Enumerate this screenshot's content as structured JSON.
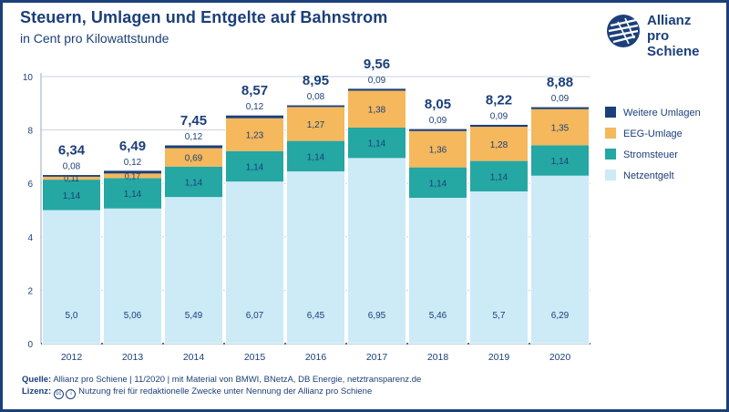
{
  "header": {
    "title": "Steuern, Umlagen und Entgelte auf Bahnstrom",
    "subtitle": "in Cent pro Kilowattstunde"
  },
  "logo": {
    "line1": "Allianz",
    "line2": "pro Schiene"
  },
  "footer": {
    "source_label": "Quelle:",
    "source_text": "Allianz pro Schiene | 11/2020 | mit Material von BMWI, BNetzA, DB Energie, netztransparenz.de",
    "license_label": "Lizenz:",
    "license_text": "Nutzung frei für redaktionelle Zwecke unter Nennung der Allianz pro Schiene"
  },
  "colors": {
    "brand": "#1b3f7a",
    "netzentgelt": "#cdeaf7",
    "stromsteuer": "#25a7a3",
    "eeg": "#f5b85c",
    "weitere": "#1b3f7a"
  },
  "chart_data": {
    "type": "bar",
    "stacked": true,
    "categories": [
      "2012",
      "2013",
      "2014",
      "2015",
      "2016",
      "2017",
      "2018",
      "2019",
      "2020"
    ],
    "series": [
      {
        "name": "Netzentgelt",
        "values": [
          5.0,
          5.06,
          5.49,
          6.07,
          6.45,
          6.95,
          5.46,
          5.7,
          6.29
        ],
        "labels": [
          "5,0",
          "5,06",
          "5,49",
          "6,07",
          "6,45",
          "6,95",
          "5,46",
          "5,7",
          "6,29"
        ],
        "color": "#cdeaf7"
      },
      {
        "name": "Stromsteuer",
        "values": [
          1.14,
          1.14,
          1.14,
          1.14,
          1.14,
          1.14,
          1.14,
          1.14,
          1.14
        ],
        "labels": [
          "1,14",
          "1,14",
          "1,14",
          "1,14",
          "1,14",
          "1,14",
          "1,14",
          "1,14",
          "1,14"
        ],
        "color": "#25a7a3"
      },
      {
        "name": "EEG-Umlage",
        "values": [
          0.11,
          0.17,
          0.69,
          1.23,
          1.27,
          1.38,
          1.36,
          1.28,
          1.35
        ],
        "labels": [
          "0,11",
          "0,17",
          "0,69",
          "1,23",
          "1,27",
          "1,38",
          "1,36",
          "1,28",
          "1,35"
        ],
        "color": "#f5b85c"
      },
      {
        "name": "Weitere Umlagen",
        "values": [
          0.08,
          0.12,
          0.12,
          0.12,
          0.08,
          0.09,
          0.09,
          0.09,
          0.09
        ],
        "labels": [
          "0,08",
          "0,12",
          "0,12",
          "0,12",
          "0,08",
          "0,09",
          "0,09",
          "0,09",
          "0,09"
        ],
        "color": "#1b3f7a"
      }
    ],
    "totals": [
      6.34,
      6.49,
      7.45,
      8.57,
      8.95,
      9.56,
      8.05,
      8.22,
      8.88
    ],
    "total_labels": [
      "6,34",
      "6,49",
      "7,45",
      "8,57",
      "8,95",
      "9,56",
      "8,05",
      "8,22",
      "8,88"
    ],
    "y_ticks": [
      "0",
      "2",
      "4",
      "6",
      "8",
      "10"
    ],
    "ylim": [
      0,
      10
    ],
    "legend_position": "right",
    "legend_order": [
      "Weitere Umlagen",
      "EEG-Umlage",
      "Stromsteuer",
      "Netzentgelt"
    ]
  }
}
